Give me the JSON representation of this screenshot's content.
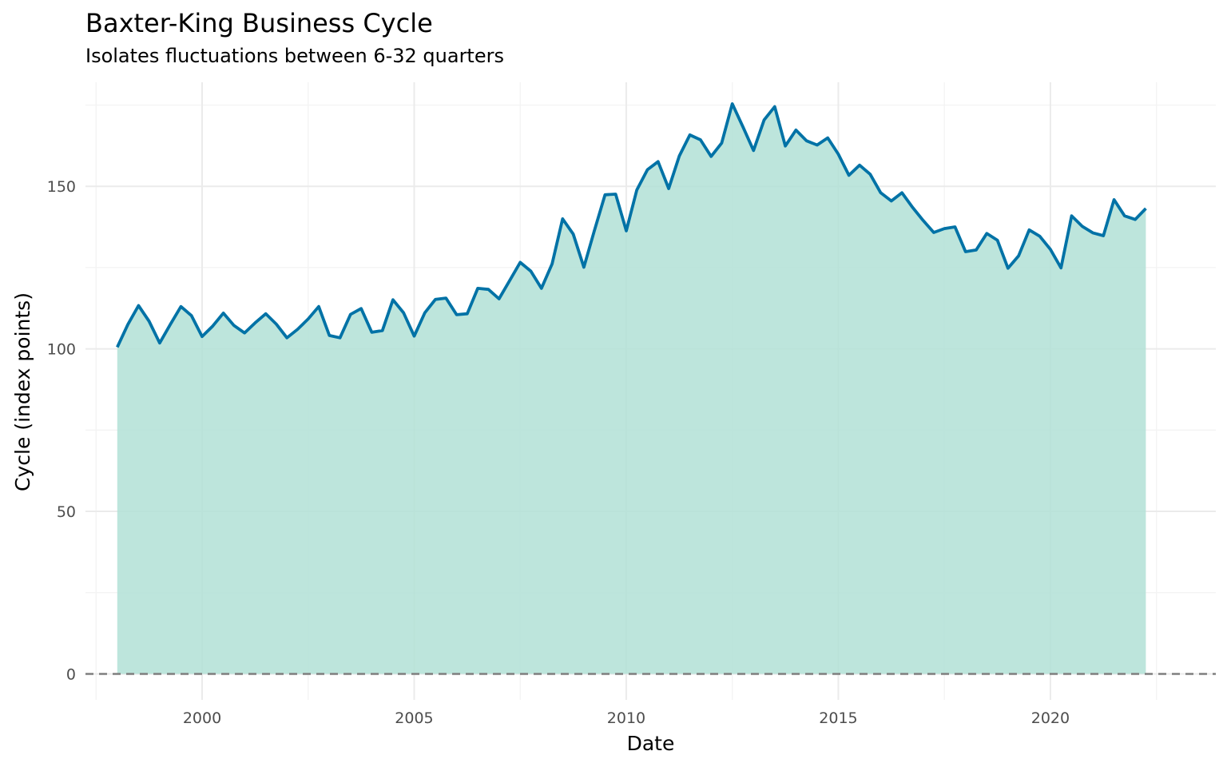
{
  "chart_data": {
    "type": "area",
    "title": "Baxter-King Business Cycle",
    "subtitle": "Isolates fluctuations between 6-32 quarters",
    "xlabel": "Date",
    "ylabel": "Cycle (index points)",
    "xlim": [
      1997.25,
      2023.9
    ],
    "ylim": [
      -8,
      182
    ],
    "x_ticks": [
      2000,
      2005,
      2010,
      2015,
      2020
    ],
    "x_tick_labels": [
      "2000",
      "2005",
      "2010",
      "2015",
      "2020"
    ],
    "y_ticks": [
      0,
      50,
      100,
      150
    ],
    "y_tick_labels": [
      "0",
      "50",
      "100",
      "150"
    ],
    "reference_line": {
      "y": 0,
      "style": "dashed"
    },
    "grid": true,
    "line_color": "#0072a6",
    "fill_color": "#b2e1d6",
    "x": [
      1998.0,
      1998.25,
      1998.5,
      1998.75,
      1999.0,
      1999.25,
      1999.5,
      1999.75,
      2000.0,
      2000.25,
      2000.5,
      2000.75,
      2001.0,
      2001.25,
      2001.5,
      2001.75,
      2002.0,
      2002.25,
      2002.5,
      2002.75,
      2003.0,
      2003.25,
      2003.5,
      2003.75,
      2004.0,
      2004.25,
      2004.5,
      2004.75,
      2005.0,
      2005.25,
      2005.5,
      2005.75,
      2006.0,
      2006.25,
      2006.5,
      2006.75,
      2007.0,
      2007.25,
      2007.5,
      2007.75,
      2008.0,
      2008.25,
      2008.5,
      2008.75,
      2009.0,
      2009.25,
      2009.5,
      2009.75,
      2010.0,
      2010.25,
      2010.5,
      2010.75,
      2011.0,
      2011.25,
      2011.5,
      2011.75,
      2012.0,
      2012.25,
      2012.5,
      2012.75,
      2013.0,
      2013.25,
      2013.5,
      2013.75,
      2014.0,
      2014.25,
      2014.5,
      2014.75,
      2015.0,
      2015.25,
      2015.5,
      2015.75,
      2016.0,
      2016.25,
      2016.5,
      2016.75,
      2017.0,
      2017.25,
      2017.5,
      2017.75,
      2018.0,
      2018.25,
      2018.5,
      2018.75,
      2019.0,
      2019.25,
      2019.5,
      2019.75,
      2020.0,
      2020.25,
      2020.5,
      2020.75,
      2021.0,
      2021.25,
      2021.5,
      2021.75,
      2022.0,
      2022.25
    ],
    "values": [
      100.5,
      107.5,
      113.3,
      108.5,
      101.8,
      107.5,
      113.0,
      110.2,
      103.8,
      107.0,
      111.0,
      107.2,
      104.9,
      108.0,
      110.8,
      107.6,
      103.4,
      106.0,
      109.2,
      113.0,
      104.1,
      103.4,
      110.6,
      112.4,
      105.1,
      105.6,
      115.1,
      111.1,
      103.9,
      111.1,
      115.2,
      115.6,
      110.5,
      110.8,
      118.6,
      118.3,
      115.4,
      121.0,
      126.6,
      123.9,
      118.6,
      126.1,
      140.0,
      135.3,
      125.1,
      136.4,
      147.4,
      147.6,
      136.3,
      148.9,
      155.1,
      157.6,
      149.3,
      159.3,
      165.8,
      164.3,
      159.2,
      163.3,
      175.4,
      168.3,
      161.0,
      170.4,
      174.5,
      162.4,
      167.3,
      164.0,
      162.7,
      164.9,
      159.9,
      153.4,
      156.5,
      153.7,
      148.0,
      145.5,
      148.0,
      143.5,
      139.5,
      135.8,
      137.0,
      137.5,
      129.9,
      130.4,
      135.5,
      133.4,
      124.8,
      128.6,
      136.6,
      134.6,
      130.6,
      124.9,
      140.9,
      137.7,
      135.7,
      134.8,
      145.9,
      140.9,
      139.8,
      143.2
    ]
  }
}
